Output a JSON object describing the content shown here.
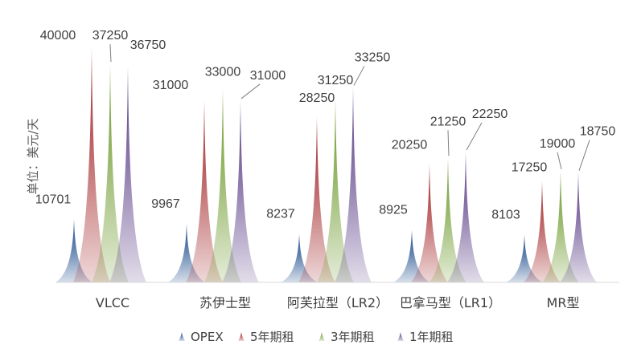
{
  "chart_data": {
    "type": "bar",
    "title": "",
    "ylabel": "单位：美元/天",
    "xlabel": "",
    "ylim": [
      0,
      40000
    ],
    "grid": false,
    "legend_position": "bottom",
    "categories": [
      "VLCC",
      "苏伊士型",
      "阿芙拉型（LR2）",
      "巴拿马型（LR1）",
      "MR型"
    ],
    "series": [
      {
        "name": "OPEX",
        "color": "#1f4e8c",
        "values": [
          10701,
          9967,
          8237,
          8925,
          8103
        ]
      },
      {
        "name": "5年期租",
        "color": "#a4282a",
        "values": [
          40000,
          31000,
          28250,
          20250,
          17250
        ]
      },
      {
        "name": "3年期租",
        "color": "#6e9a2e",
        "values": [
          37250,
          33000,
          31250,
          21250,
          19000
        ]
      },
      {
        "name": "1年期租",
        "color": "#5a3f87",
        "values": [
          36750,
          31000,
          33250,
          22250,
          18750
        ]
      }
    ]
  }
}
